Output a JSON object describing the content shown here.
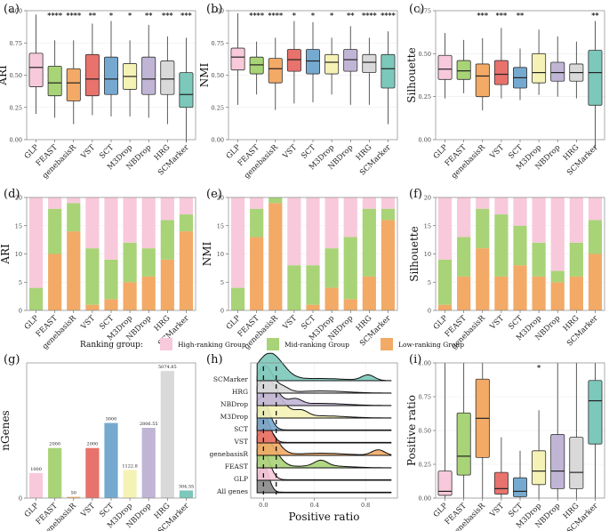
{
  "methods": [
    "GLP",
    "FEAST",
    "genebasisR",
    "VST",
    "SCT",
    "M3Drop",
    "NBDrop",
    "HRG",
    "SCMarker"
  ],
  "colors": {
    "GLP": "#F8C9DB",
    "FEAST": "#A8D377",
    "genebasisR": "#F2AA66",
    "VST": "#E8726C",
    "SCT": "#76A9CF",
    "M3Drop": "#F5F2B5",
    "NBDrop": "#C1B5D6",
    "HRG": "#D9D9D9",
    "SCMarker": "#7CC8BA",
    "all_genes": "#888888",
    "high": "#F8C9DB",
    "mid": "#A8D377",
    "low": "#F2AA66"
  },
  "legend": {
    "title": "Ranking group:",
    "items": [
      {
        "label": "High-ranking Group",
        "color": "#F8C9DB"
      },
      {
        "label": "Mid-ranking Group",
        "color": "#A8D377"
      },
      {
        "label": "Low-ranking Group",
        "color": "#F2AA66"
      }
    ]
  },
  "chart_data": [
    {
      "panel": "(a)",
      "type": "boxplot",
      "ylabel": "ARI",
      "ylim": [
        0,
        1.0
      ],
      "yticks": [
        0.0,
        0.25,
        0.5,
        0.75,
        1.0
      ],
      "yticklabels": [
        "0.00",
        "0.25",
        "0.50",
        "0.75",
        "1.00"
      ],
      "significance": [
        "",
        "****",
        "****",
        "**",
        "*",
        "*",
        "**",
        "***",
        "***"
      ],
      "boxes": [
        {
          "min": 0.2,
          "q1": 0.41,
          "median": 0.56,
          "q3": 0.67,
          "max": 0.97
        },
        {
          "min": 0.17,
          "q1": 0.34,
          "median": 0.44,
          "q3": 0.57,
          "max": 0.77
        },
        {
          "min": 0.12,
          "q1": 0.3,
          "median": 0.44,
          "q3": 0.55,
          "max": 0.77
        },
        {
          "min": 0.19,
          "q1": 0.34,
          "median": 0.47,
          "q3": 0.66,
          "max": 0.9
        },
        {
          "min": 0.18,
          "q1": 0.35,
          "median": 0.47,
          "q3": 0.64,
          "max": 0.92
        },
        {
          "min": 0.18,
          "q1": 0.39,
          "median": 0.49,
          "q3": 0.59,
          "max": 0.77
        },
        {
          "min": 0.17,
          "q1": 0.35,
          "median": 0.47,
          "q3": 0.64,
          "max": 0.89
        },
        {
          "min": 0.12,
          "q1": 0.35,
          "median": 0.47,
          "q3": 0.61,
          "max": 0.8
        },
        {
          "min": -0.02,
          "q1": 0.25,
          "median": 0.35,
          "q3": 0.52,
          "max": 0.79
        }
      ]
    },
    {
      "panel": "(b)",
      "type": "boxplot",
      "ylabel": "NMI",
      "ylim": [
        0,
        1.0
      ],
      "yticks": [
        0.0,
        0.25,
        0.5,
        0.75,
        1.0
      ],
      "yticklabels": [
        "0.00",
        "0.25",
        "0.50",
        "0.75",
        "1.00"
      ],
      "significance": [
        "",
        "****",
        "****",
        "*",
        "*",
        "*",
        "**",
        "****",
        "****"
      ],
      "boxes": [
        {
          "min": 0.27,
          "q1": 0.54,
          "median": 0.64,
          "q3": 0.71,
          "max": 0.98
        },
        {
          "min": 0.35,
          "q1": 0.51,
          "median": 0.58,
          "q3": 0.64,
          "max": 0.76
        },
        {
          "min": 0.23,
          "q1": 0.44,
          "median": 0.55,
          "q3": 0.63,
          "max": 0.79
        },
        {
          "min": 0.28,
          "q1": 0.53,
          "median": 0.62,
          "q3": 0.7,
          "max": 0.92
        },
        {
          "min": 0.29,
          "q1": 0.51,
          "median": 0.61,
          "q3": 0.7,
          "max": 0.91
        },
        {
          "min": 0.35,
          "q1": 0.51,
          "median": 0.6,
          "q3": 0.66,
          "max": 0.79
        },
        {
          "min": 0.27,
          "q1": 0.53,
          "median": 0.62,
          "q3": 0.7,
          "max": 0.88
        },
        {
          "min": 0.27,
          "q1": 0.52,
          "median": 0.6,
          "q3": 0.66,
          "max": 0.79
        },
        {
          "min": 0.12,
          "q1": 0.4,
          "median": 0.55,
          "q3": 0.66,
          "max": 0.84
        }
      ]
    },
    {
      "panel": "(c)",
      "type": "boxplot",
      "ylabel": "Silhouette",
      "ylim": [
        0,
        0.75
      ],
      "yticks": [
        0.0,
        0.25,
        0.5,
        0.75
      ],
      "yticklabels": [
        "0.00",
        "0.25",
        "0.50",
        "0.75"
      ],
      "significance": [
        "",
        "",
        "***",
        "***",
        "**",
        "",
        "",
        "",
        "**"
      ],
      "boxes": [
        {
          "min": 0.24,
          "q1": 0.35,
          "median": 0.41,
          "q3": 0.49,
          "max": 0.62
        },
        {
          "min": 0.27,
          "q1": 0.35,
          "median": 0.4,
          "q3": 0.46,
          "max": 0.58
        },
        {
          "min": 0.17,
          "q1": 0.25,
          "median": 0.37,
          "q3": 0.44,
          "max": 0.59
        },
        {
          "min": 0.24,
          "q1": 0.32,
          "median": 0.38,
          "q3": 0.46,
          "max": 0.65
        },
        {
          "min": 0.23,
          "q1": 0.3,
          "median": 0.36,
          "q3": 0.42,
          "max": 0.53
        },
        {
          "min": 0.26,
          "q1": 0.33,
          "median": 0.39,
          "q3": 0.5,
          "max": 0.64
        },
        {
          "min": 0.25,
          "q1": 0.34,
          "median": 0.39,
          "q3": 0.45,
          "max": 0.6
        },
        {
          "min": 0.24,
          "q1": 0.34,
          "median": 0.39,
          "q3": 0.44,
          "max": 0.57
        },
        {
          "min": -0.05,
          "q1": 0.2,
          "median": 0.39,
          "q3": 0.52,
          "max": 0.69
        }
      ]
    },
    {
      "panel": "(d)",
      "type": "stacked-bar",
      "ylabel": "ARI",
      "ylim": [
        0,
        20
      ],
      "yticks": [
        0,
        5,
        10,
        15,
        20
      ],
      "yticklabels": [
        "0",
        "5",
        "10",
        "15",
        "20"
      ],
      "series": [
        {
          "name": "Low-ranking Group",
          "values": [
            0,
            10,
            14,
            1,
            2,
            5,
            6,
            9,
            14
          ]
        },
        {
          "name": "Mid-ranking Group",
          "values": [
            4,
            8,
            5,
            10,
            7,
            7,
            5,
            7,
            3
          ]
        },
        {
          "name": "High-ranking Group",
          "values": [
            16,
            2,
            1,
            9,
            11,
            8,
            9,
            4,
            3
          ]
        }
      ]
    },
    {
      "panel": "(e)",
      "type": "stacked-bar",
      "ylabel": "NMI",
      "ylim": [
        0,
        20
      ],
      "yticks": [
        0,
        5,
        10,
        15,
        20
      ],
      "yticklabels": [
        "0",
        "5",
        "10",
        "15",
        "20"
      ],
      "series": [
        {
          "name": "Low-ranking Group",
          "values": [
            0,
            13,
            19,
            0,
            1,
            4,
            2,
            6,
            16
          ]
        },
        {
          "name": "Mid-ranking Group",
          "values": [
            4,
            5,
            1,
            8,
            7,
            7,
            11,
            12,
            2
          ]
        },
        {
          "name": "High-ranking Group",
          "values": [
            16,
            2,
            0,
            12,
            12,
            9,
            7,
            2,
            2
          ]
        }
      ]
    },
    {
      "panel": "(f)",
      "type": "stacked-bar",
      "ylabel": "Silhouette",
      "ylim": [
        0,
        20
      ],
      "yticks": [
        0,
        5,
        10,
        15,
        20
      ],
      "yticklabels": [
        "0",
        "5",
        "10",
        "15",
        "20"
      ],
      "series": [
        {
          "name": "Low-ranking Group",
          "values": [
            1,
            6,
            11,
            6,
            8,
            6,
            5,
            6,
            10
          ]
        },
        {
          "name": "Mid-ranking Group",
          "values": [
            8,
            7,
            7,
            11,
            7,
            6,
            2,
            6,
            6
          ]
        },
        {
          "name": "High-ranking Group",
          "values": [
            11,
            7,
            2,
            3,
            5,
            8,
            13,
            8,
            4
          ]
        }
      ]
    },
    {
      "panel": "(g)",
      "type": "bar",
      "ylabel": "nGenes",
      "ylim": [
        0,
        5400
      ],
      "yticks": [
        0
      ],
      "yticklabels": [
        "0"
      ],
      "values": [
        1000,
        2000,
        50,
        2000,
        3000,
        1122.8,
        2806.55,
        5074.85,
        304.55
      ],
      "value_labels": [
        "1000",
        "2000",
        "50",
        "2000",
        "3000",
        "1122.8",
        "2806.55",
        "5074.85",
        "304.55"
      ]
    },
    {
      "panel": "(h)",
      "type": "ridgeline",
      "xlabel": "Positive ratio",
      "xlim": [
        -0.1,
        1.05
      ],
      "xticks": [
        0.0,
        0.4,
        0.8
      ],
      "xticklabels": [
        "0.0",
        "0.4",
        "0.8"
      ],
      "dashed_lines_x": [
        0.0,
        0.1
      ],
      "ridges": [
        {
          "name": "All genes",
          "peak": 0.0,
          "spread": 0.04,
          "tail": 0.0
        },
        {
          "name": "GLP",
          "peak": 0.0,
          "spread": 0.05,
          "tail": 0.0
        },
        {
          "name": "FEAST",
          "peak": 0.02,
          "spread": 0.08,
          "tail": 0.45
        },
        {
          "name": "genebasisR",
          "peak": 0.02,
          "spread": 0.08,
          "tail": 0.9
        },
        {
          "name": "VST",
          "peak": 0.0,
          "spread": 0.05,
          "tail": 0.0
        },
        {
          "name": "SCT",
          "peak": 0.0,
          "spread": 0.05,
          "tail": 0.0
        },
        {
          "name": "M3Drop",
          "peak": 0.05,
          "spread": 0.1,
          "tail": 0.3
        },
        {
          "name": "NBDrop",
          "peak": 0.02,
          "spread": 0.08,
          "tail": 0.25
        },
        {
          "name": "HRG",
          "peak": 0.01,
          "spread": 0.06,
          "tail": 0.15
        },
        {
          "name": "SCMarker",
          "peak": 0.05,
          "spread": 0.1,
          "tail": 0.82
        }
      ]
    },
    {
      "panel": "(i)",
      "type": "boxplot",
      "ylabel": "Positive ratio",
      "ylim": [
        0,
        1.0
      ],
      "yticks": [
        0.0,
        0.25,
        0.5,
        0.75,
        1.0
      ],
      "yticklabels": [
        "0.00",
        "0.25",
        "0.50",
        "0.75",
        "1.00"
      ],
      "significance": [
        "",
        "",
        "",
        "",
        "",
        "*",
        "",
        "",
        ""
      ],
      "boxes": [
        {
          "min": 0.0,
          "q1": 0.02,
          "median": 0.05,
          "q3": 0.2,
          "max": 1.0
        },
        {
          "min": 0.0,
          "q1": 0.17,
          "median": 0.31,
          "q3": 0.63,
          "max": 1.0
        },
        {
          "min": 0.0,
          "q1": 0.3,
          "median": 0.59,
          "q3": 0.88,
          "max": 1.0
        },
        {
          "min": 0.0,
          "q1": 0.03,
          "median": 0.07,
          "q3": 0.19,
          "max": 0.45
        },
        {
          "min": 0.0,
          "q1": 0.01,
          "median": 0.05,
          "q3": 0.15,
          "max": 0.35
        },
        {
          "min": 0.0,
          "q1": 0.1,
          "median": 0.2,
          "q3": 0.35,
          "max": 0.65
        },
        {
          "min": 0.0,
          "q1": 0.07,
          "median": 0.2,
          "q3": 0.47,
          "max": 1.0
        },
        {
          "min": 0.0,
          "q1": 0.07,
          "median": 0.19,
          "q3": 0.45,
          "max": 1.0
        },
        {
          "min": 0.0,
          "q1": 0.4,
          "median": 0.72,
          "q3": 0.87,
          "max": 1.0
        }
      ]
    }
  ]
}
